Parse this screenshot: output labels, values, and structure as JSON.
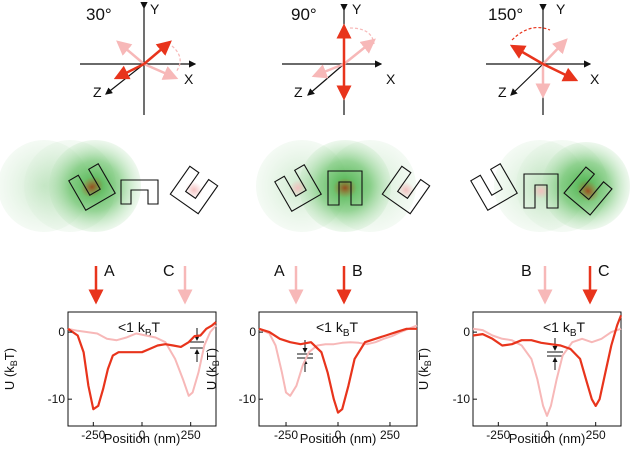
{
  "colors": {
    "accent_red": "#e8341c",
    "pale_red": "#f7b8b8",
    "black": "#111111",
    "green": "#3aa83a",
    "brown": "#9a4a1e"
  },
  "panels": [
    {
      "angle_label": "30°",
      "axis_x": "X",
      "axis_y": "Y",
      "axis_z": "Z",
      "arrows": [
        {
          "label": "A",
          "emphasis": "strong"
        },
        {
          "label": "C",
          "emphasis": "faint"
        }
      ],
      "annotation": "<1 k",
      "annotation_sub": "B",
      "annotation_tail": "T",
      "y_axis_label": "U (k",
      "y_axis_sub": "B",
      "y_axis_tail": "T)",
      "x_axis_label": "Position (nm)",
      "x_ticks": [
        "-250",
        "0",
        "250"
      ],
      "y_ticks": [
        "0",
        "-10"
      ],
      "chart_data": {
        "type": "line",
        "xlim": [
          -380,
          380
        ],
        "ylim": [
          -14,
          3
        ],
        "series": [
          {
            "name": "strong",
            "x": [
              -380,
              -330,
              -300,
              -275,
              -250,
              -225,
              -200,
              -175,
              -150,
              -120,
              -80,
              -40,
              0,
              40,
              80,
              120,
              160,
              200,
              240,
              270,
              300,
              330,
              360,
              380
            ],
            "y": [
              0.5,
              -0.5,
              -3,
              -8,
              -11.5,
              -11,
              -8.5,
              -5.5,
              -3.5,
              -3,
              -3,
              -3,
              -3,
              -2.5,
              -2,
              -1.8,
              -2,
              -2.2,
              -1.5,
              -0.6,
              -0.5,
              0.5,
              1,
              1.5
            ]
          },
          {
            "name": "faint",
            "x": [
              -380,
              -330,
              -280,
              -230,
              -180,
              -130,
              -80,
              -30,
              20,
              70,
              120,
              170,
              210,
              240,
              260,
              290,
              320,
              350,
              380
            ],
            "y": [
              0.5,
              0.2,
              0,
              -0.2,
              -1,
              -1.2,
              -0.8,
              -0.2,
              -0.5,
              -0.8,
              -1.5,
              -4,
              -7,
              -9.5,
              -9,
              -6,
              -2,
              0,
              1
            ]
          }
        ]
      }
    },
    {
      "angle_label": "90°",
      "axis_x": "X",
      "axis_y": "Y",
      "axis_z": "Z",
      "arrows": [
        {
          "label": "A",
          "emphasis": "faint"
        },
        {
          "label": "B",
          "emphasis": "strong"
        }
      ],
      "annotation": "<1 k",
      "annotation_sub": "B",
      "annotation_tail": "T",
      "y_axis_label": "U (k",
      "y_axis_sub": "B",
      "y_axis_tail": "T)",
      "x_axis_label": "Position (nm)",
      "x_ticks": [
        "-250",
        "0",
        "250"
      ],
      "y_ticks": [
        "0",
        "-10"
      ],
      "chart_data": {
        "type": "line",
        "xlim": [
          -380,
          380
        ],
        "ylim": [
          -14,
          3
        ],
        "series": [
          {
            "name": "strong",
            "x": [
              -380,
              -330,
              -280,
              -230,
              -180,
              -130,
              -80,
              -50,
              -20,
              0,
              20,
              50,
              80,
              130,
              180,
              230,
              280,
              330,
              380
            ],
            "y": [
              0.5,
              0,
              -1,
              -1.5,
              -1.8,
              -1.5,
              -3,
              -6,
              -10,
              -12,
              -11.5,
              -8,
              -4,
              -1.5,
              -1,
              -0.5,
              0,
              0.5,
              0.5
            ]
          },
          {
            "name": "faint",
            "x": [
              -380,
              -330,
              -300,
              -270,
              -250,
              -230,
              -200,
              -170,
              -140,
              -100,
              -60,
              -20,
              20,
              60,
              100,
              140,
              180,
              220,
              260,
              300,
              340,
              380
            ],
            "y": [
              0.5,
              -0.2,
              -2,
              -6,
              -9,
              -9.5,
              -8,
              -5,
              -3,
              -2,
              -1.8,
              -1.8,
              -1.6,
              -1.5,
              -1.6,
              -1.8,
              -1.5,
              -1,
              -0.6,
              0,
              0.5,
              1
            ]
          }
        ]
      }
    },
    {
      "angle_label": "150°",
      "axis_x": "X",
      "axis_y": "Y",
      "axis_z": "Z",
      "arrows": [
        {
          "label": "B",
          "emphasis": "faint"
        },
        {
          "label": "C",
          "emphasis": "strong"
        }
      ],
      "annotation": "<1 k",
      "annotation_sub": "B",
      "annotation_tail": "T",
      "y_axis_label": "U (k",
      "y_axis_sub": "B",
      "y_axis_tail": "T)",
      "x_axis_label": "Position (nm)",
      "x_ticks": [
        "-250",
        "0",
        "250"
      ],
      "y_ticks": [
        "0",
        "-10"
      ],
      "chart_data": {
        "type": "line",
        "xlim": [
          -380,
          380
        ],
        "ylim": [
          -14,
          3
        ],
        "series": [
          {
            "name": "strong",
            "x": [
              -380,
              -330,
              -280,
              -230,
              -180,
              -130,
              -80,
              -30,
              20,
              70,
              120,
              170,
              200,
              230,
              250,
              270,
              300,
              330,
              360,
              380
            ],
            "y": [
              -0.5,
              -0.3,
              -1,
              -2,
              -1.8,
              -1.2,
              -1.2,
              -1.6,
              -1.8,
              -2,
              -2.5,
              -4,
              -7,
              -10,
              -11,
              -10,
              -6,
              -2,
              1,
              2.5
            ]
          },
          {
            "name": "faint",
            "x": [
              -380,
              -330,
              -280,
              -230,
              -180,
              -130,
              -80,
              -50,
              -20,
              0,
              20,
              50,
              80,
              130,
              180,
              230,
              280,
              330,
              380
            ],
            "y": [
              0.5,
              0.3,
              -0.5,
              -1,
              -1.2,
              -2,
              -4,
              -7,
              -11,
              -12.5,
              -11,
              -7,
              -3.5,
              -1.5,
              -1,
              -1.5,
              -1,
              0,
              0.5
            ]
          }
        ]
      }
    }
  ]
}
